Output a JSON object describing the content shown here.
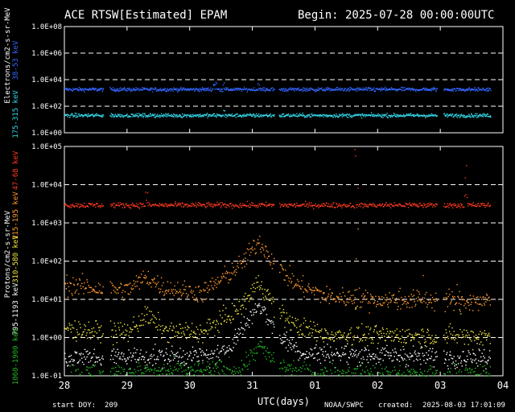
{
  "header": {
    "title": "ACE RTSW[Estimated] EPAM",
    "begin": "Begin: 2025-07-28 00:00:00UTC"
  },
  "footer": {
    "start_doy": "start DOY:  209",
    "xlabel": "UTC(days)",
    "source": "NOAA/SWPC",
    "created_label": "created:",
    "created_value": "2025-08-03 17:01:09"
  },
  "colors": {
    "background": "#000000",
    "axes": "#ffffff",
    "electrons_38_53": "#3366ff",
    "electrons_175_315": "#33d6e6",
    "protons_47_68": "#ff3b1f",
    "protons_115_195": "#ff9a2e",
    "protons_310_580": "#f0e640",
    "protons_795_1193": "#ffffff",
    "protons_1060_1900": "#22bb22"
  },
  "chart_data": [
    {
      "type": "scatter",
      "panel": "electrons",
      "ylabel": "Electrons/cm2-s-sr-MeV",
      "yscale": "log",
      "ylim": [
        1,
        100000000
      ],
      "yticks": [
        "1.0E+00",
        "1.0E+02",
        "1.0E+04",
        "1.0E+06",
        "1.0E+08"
      ],
      "xlim": [
        0,
        7
      ],
      "xticks": [
        "28",
        "29",
        "30",
        "31",
        "01",
        "02",
        "03",
        "04"
      ],
      "grid": "dashed horizontal",
      "data_gaps_days": [
        [
          0.62,
          0.72
        ],
        [
          3.35,
          3.42
        ],
        [
          5.95,
          6.05
        ],
        [
          6.8,
          7.0
        ]
      ],
      "series": [
        {
          "name": "38-53 keV",
          "color": "#3366ff",
          "baseline": 2000,
          "scatter_decades": 0.12,
          "enhancements": [
            {
              "day": 2.4,
              "peak": 8000
            },
            {
              "day": 2.55,
              "peak": 12000
            },
            {
              "day": 3.1,
              "peak": 6000
            }
          ]
        },
        {
          "name": "175-315 keV",
          "color": "#33d6e6",
          "baseline": 22,
          "scatter_decades": 0.12,
          "enhancements": [
            {
              "day": 2.55,
              "peak": 60
            }
          ]
        }
      ]
    },
    {
      "type": "scatter",
      "panel": "protons",
      "ylabel": "Protons/cm2-s-sr-MeV",
      "yscale": "log",
      "ylim": [
        0.1,
        100000
      ],
      "yticks": [
        "1.0E-01",
        "1.0E+00",
        "1.0E+01",
        "1.0E+02",
        "1.0E+03",
        "1.0E+04",
        "1.0E+05"
      ],
      "xlim": [
        0,
        7
      ],
      "xticks": [
        "28",
        "29",
        "30",
        "31",
        "01",
        "02",
        "03",
        "04"
      ],
      "grid": "dashed horizontal",
      "data_gaps_days": [
        [
          0.62,
          0.72
        ],
        [
          3.35,
          3.42
        ],
        [
          5.95,
          6.05
        ],
        [
          6.8,
          7.0
        ]
      ],
      "series": [
        {
          "name": "47-68 keV",
          "color": "#ff3b1f",
          "baseline": 3000,
          "scatter_decades": 0.06,
          "enhancements": [
            {
              "day": 1.3,
              "peak": 8000
            },
            {
              "day": 4.65,
              "peak": 90000
            },
            {
              "day": 6.4,
              "peak": 60000
            }
          ]
        },
        {
          "name": "115-195 keV",
          "color": "#ff9a2e",
          "baseline": 15,
          "profile": [
            [
              0,
              25
            ],
            [
              0.5,
              20
            ],
            [
              1.0,
              18
            ],
            [
              1.3,
              40
            ],
            [
              1.6,
              20
            ],
            [
              2.2,
              15
            ],
            [
              2.8,
              80
            ],
            [
              3.1,
              350
            ],
            [
              3.4,
              70
            ],
            [
              3.7,
              25
            ],
            [
              4.2,
              12
            ],
            [
              5.0,
              10
            ],
            [
              6.0,
              10
            ],
            [
              6.8,
              9
            ]
          ],
          "enhancements": [
            {
              "day": 4.65,
              "peak": 900
            },
            {
              "day": 5.7,
              "peak": 400
            },
            {
              "day": 6.25,
              "peak": 200
            }
          ]
        },
        {
          "name": "310-580 keV",
          "color": "#f0e640",
          "baseline": 1.5,
          "profile": [
            [
              0,
              1.8
            ],
            [
              0.5,
              1.5
            ],
            [
              1.0,
              1.4
            ],
            [
              1.3,
              4
            ],
            [
              1.6,
              1.5
            ],
            [
              2.2,
              1.4
            ],
            [
              2.8,
              6
            ],
            [
              3.1,
              30
            ],
            [
              3.4,
              5
            ],
            [
              3.7,
              2
            ],
            [
              4.2,
              1.2
            ],
            [
              6.8,
              1.1
            ]
          ],
          "enhancements": [
            {
              "day": 4.65,
              "peak": 80
            },
            {
              "day": 6.3,
              "peak": 40
            }
          ]
        },
        {
          "name": "795-1193 keV",
          "color": "#ffffff",
          "baseline": 0.3,
          "profile": [
            [
              0,
              0.3
            ],
            [
              2.5,
              0.35
            ],
            [
              2.9,
              2.5
            ],
            [
              3.1,
              8
            ],
            [
              3.4,
              1.2
            ],
            [
              3.8,
              0.4
            ],
            [
              6.8,
              0.3
            ]
          ]
        },
        {
          "name": "1060-1900 keV",
          "color": "#22bb22",
          "baseline": 0.11,
          "profile": [
            [
              0,
              0.11
            ],
            [
              2.8,
              0.15
            ],
            [
              3.1,
              0.6
            ],
            [
              3.4,
              0.2
            ],
            [
              3.8,
              0.12
            ],
            [
              6.8,
              0.11
            ]
          ]
        }
      ]
    }
  ]
}
